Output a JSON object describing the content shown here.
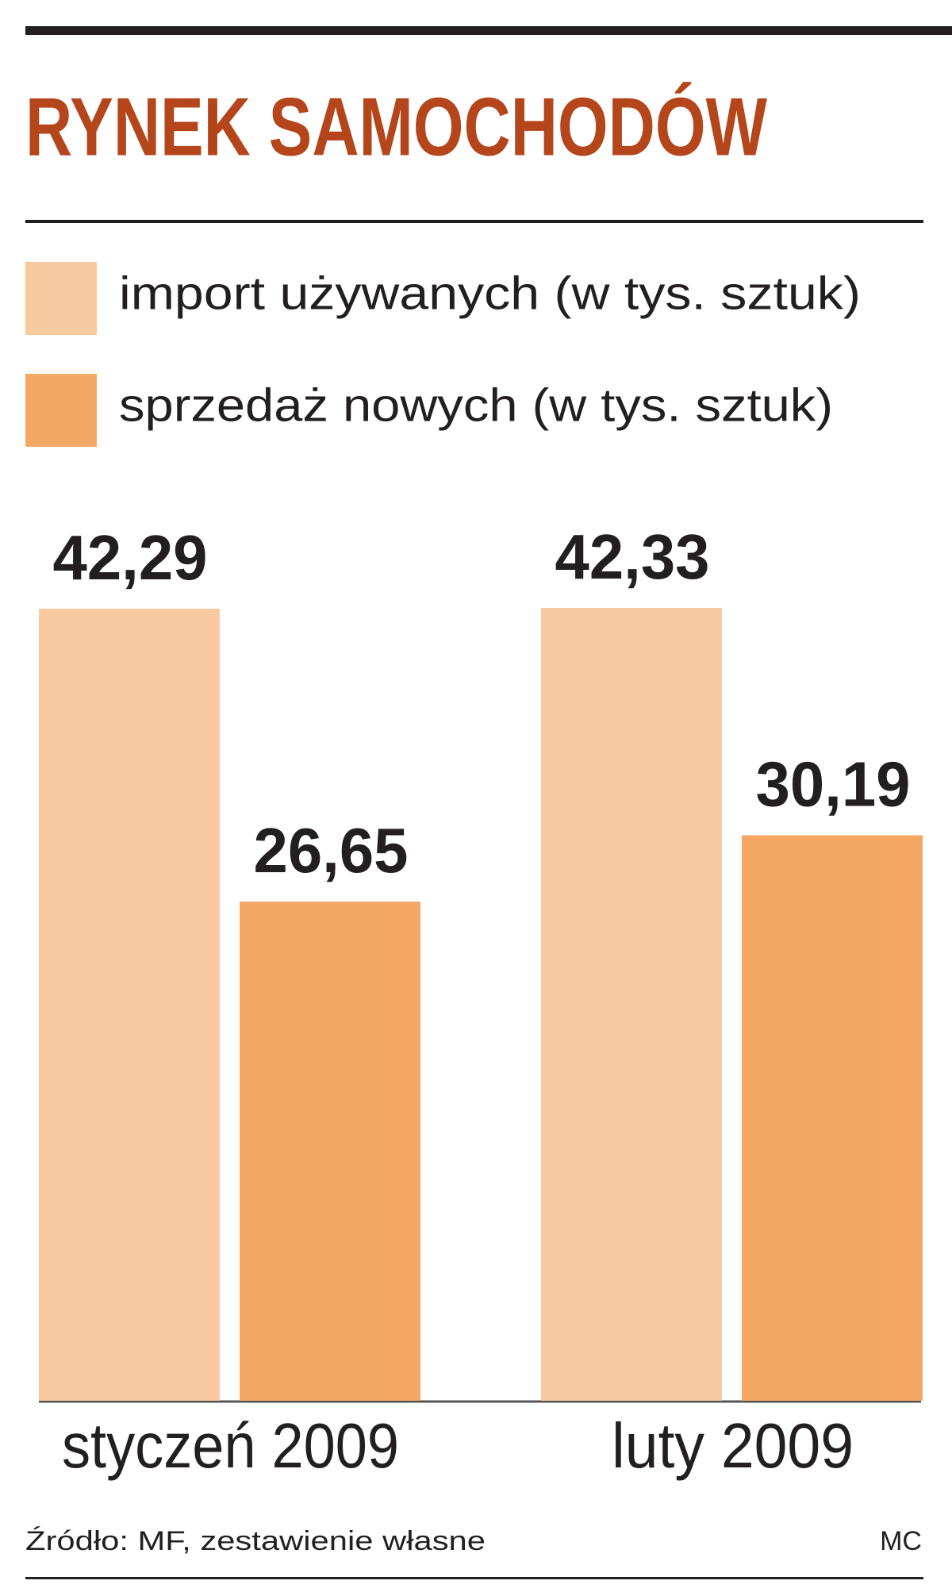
{
  "chart_data": {
    "type": "bar",
    "title": "RYNEK SAMOCHODÓW",
    "categories": [
      "styczeń 2009",
      "luty 2009"
    ],
    "series": [
      {
        "name": "import używanych (w tys. sztuk)",
        "color": "#f9c9a0",
        "values": [
          42.29,
          42.33
        ],
        "value_labels": [
          "42,29",
          "42,33"
        ]
      },
      {
        "name": "sprzedaż nowych (w tys. sztuk)",
        "color": "#f5a866",
        "values": [
          26.65,
          30.19
        ],
        "value_labels": [
          "26,65",
          "30,19"
        ]
      }
    ],
    "source": "Źródło: MF, zestawienie własne",
    "credit": "MC"
  }
}
